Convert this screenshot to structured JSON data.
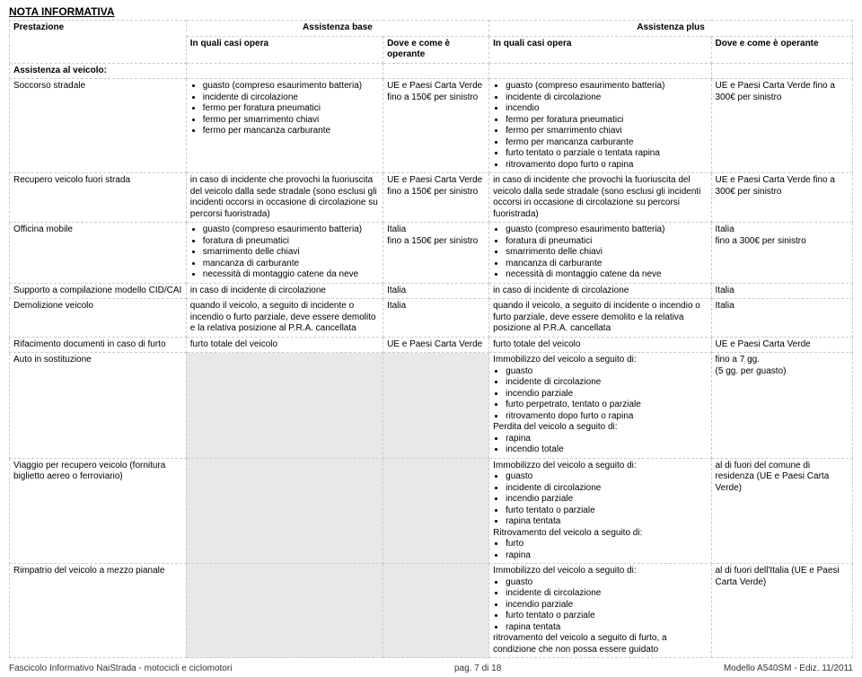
{
  "doc_title": "NOTA INFORMATIVA",
  "headers": {
    "prestazione": "Prestazione",
    "base": "Assistenza base",
    "plus": "Assistenza plus",
    "in_quali": "In quali casi opera",
    "dove": "Dove e come è operante"
  },
  "section_assistenza_veicolo": "Assistenza al veicolo:",
  "rows": {
    "soccorso": {
      "label": "Soccorso stradale",
      "base_casi": [
        "guasto (compreso esaurimento batteria)",
        "incidente di circolazione",
        "fermo per foratura pneumatici",
        "fermo per smarrimento chiavi",
        "fermo per mancanza carburante"
      ],
      "base_dove": "UE e Paesi Carta Verde fino a 150€ per sinistro",
      "plus_casi": [
        "guasto (compreso esaurimento batteria)",
        "incidente di circolazione",
        "incendio",
        "fermo per foratura pneumatici",
        "fermo per smarrimento chiavi",
        "fermo per mancanza carburante",
        "furto tentato o parziale o tentata rapina",
        "ritrovamento dopo furto o rapina"
      ],
      "plus_dove": "UE e Paesi Carta Verde fino a 300€ per sinistro"
    },
    "recupero": {
      "label": "Recupero veicolo fuori strada",
      "base_casi_text": "in caso di incidente che provochi la fuoriuscita del veicolo dalla sede stradale (sono esclusi gli incidenti occorsi in occasione di circolazione su percorsi fuoristrada)",
      "base_dove": "UE e Paesi Carta Verde fino a 150€ per sinistro",
      "plus_casi_text": "in caso di incidente che provochi la fuoriuscita del veicolo dalla sede stradale (sono esclusi gli incidenti occorsi in occasione di circolazione su percorsi fuoristrada)",
      "plus_dove": "UE e Paesi Carta Verde fino a 300€ per sinistro"
    },
    "officina": {
      "label": "Officina mobile",
      "base_casi": [
        "guasto (compreso esaurimento batteria)",
        "foratura di pneumatici",
        "smarrimento delle chiavi",
        "mancanza di carburante",
        "necessità di montaggio catene da neve"
      ],
      "base_dove": "Italia\nfino a 150€ per sinistro",
      "plus_casi": [
        "guasto (compreso esaurimento batteria)",
        "foratura di pneumatici",
        "smarrimento delle chiavi",
        "mancanza di carburante",
        "necessità di montaggio catene da neve"
      ],
      "plus_dove": "Italia\nfino a 300€ per sinistro"
    },
    "supporto": {
      "label": "Supporto a compilazione modello CID/CAI",
      "base_casi_text": "in caso di incidente di circolazione",
      "base_dove": "Italia",
      "plus_casi_text": "in caso di incidente di circolazione",
      "plus_dove": "Italia"
    },
    "demolizione": {
      "label": "Demolizione veicolo",
      "base_casi_text": "quando il veicolo, a seguito di incidente o incendio o furto parziale, deve essere demolito e la relativa posizione al P.R.A. cancellata",
      "base_dove": "Italia",
      "plus_casi_text": "quando il veicolo, a seguito di incidente o incendio o furto parziale, deve essere demolito e la relativa posizione al P.R.A. cancellata",
      "plus_dove": "Italia"
    },
    "rifacimento": {
      "label": "Rifacimento documenti in caso di furto",
      "base_casi_text": "furto totale del veicolo",
      "base_dove": "UE e Paesi Carta Verde",
      "plus_casi_text": "furto totale del veicolo",
      "plus_dove": "UE e Paesi Carta Verde"
    },
    "auto_sost": {
      "label": "Auto in sostituzione",
      "plus_intro1": "Immobilizzo del veicolo a seguito di:",
      "plus_list1": [
        "guasto",
        "incidente di circolazione",
        "incendio parziale",
        "furto perpetrato, tentato o parziale",
        "ritrovamento dopo furto o rapina"
      ],
      "plus_intro2": "Perdita del veicolo a seguito di:",
      "plus_list2": [
        "rapina",
        "incendio totale"
      ],
      "plus_dove": "fino a 7 gg.\n(5 gg. per guasto)"
    },
    "viaggio": {
      "label": "Viaggio per recupero veicolo (fornitura biglietto aereo o ferroviario)",
      "plus_intro1": "Immobilizzo del veicolo a seguito di:",
      "plus_list1": [
        "guasto",
        "incidente di circolazione",
        "incendio parziale",
        "furto tentato o parziale",
        "rapina tentata"
      ],
      "plus_intro2": "Ritrovamento del veicolo a seguito di:",
      "plus_list2": [
        "furto",
        "rapina"
      ],
      "plus_dove": "al di fuori del comune di residenza (UE e Paesi Carta Verde)"
    },
    "rimpatrio": {
      "label": "Rimpatrio del veicolo a mezzo pianale",
      "plus_intro1": "Immobilizzo del veicolo a seguito di:",
      "plus_list1": [
        "guasto",
        "incidente di circolazione",
        "incendio parziale",
        "furto tentato o parziale",
        "rapina tentata"
      ],
      "plus_trail": "ritrovamento del veicolo a seguito di furto, a condizione che non possa essere guidato",
      "plus_dove": "al di fuori dell'Italia (UE e Paesi Carta Verde)"
    }
  },
  "footer": {
    "left": "Fascicolo Informativo NaiStrada - motocicli e ciclomotori",
    "center": "pag. 7 di 18",
    "right": "Modello A540SM - Ediz. 11/2011"
  }
}
